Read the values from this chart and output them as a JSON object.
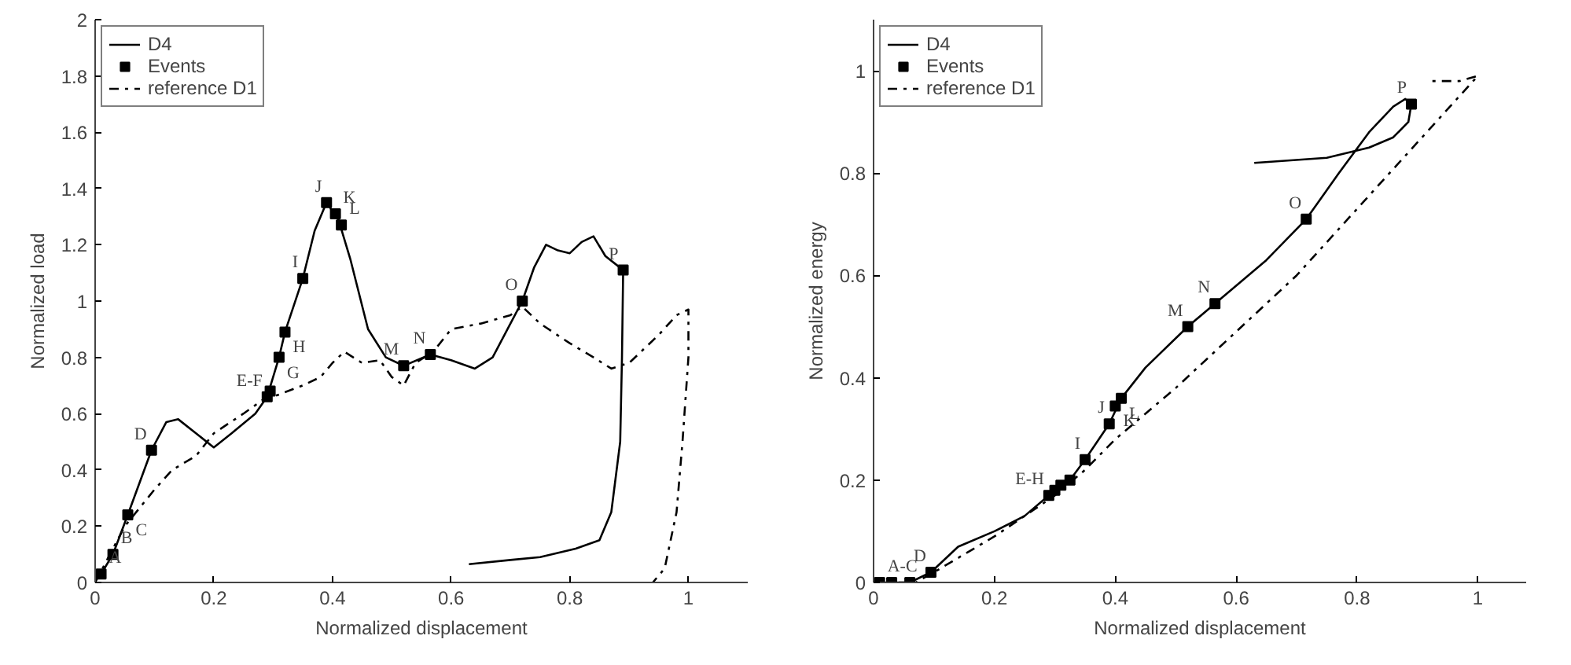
{
  "chart_data": [
    {
      "type": "line",
      "xlabel": "Normalized displacement",
      "ylabel": "Normalized load",
      "xlim": [
        0,
        1.1
      ],
      "ylim": [
        0,
        2
      ],
      "xticks": [
        0,
        0.2,
        0.4,
        0.6,
        0.8,
        1
      ],
      "yticks": [
        0,
        0.2,
        0.4,
        0.6,
        0.8,
        1,
        1.2,
        1.4,
        1.6,
        1.8,
        2
      ],
      "grid": false,
      "legend": "top left",
      "series": [
        {
          "name": "D4",
          "type": "line",
          "color": "#000000",
          "line_style": "solid",
          "x": [
            0,
            0.01,
            0.03,
            0.055,
            0.095,
            0.12,
            0.14,
            0.17,
            0.2,
            0.23,
            0.27,
            0.29,
            0.31,
            0.32,
            0.35,
            0.37,
            0.39,
            0.41,
            0.43,
            0.46,
            0.49,
            0.52,
            0.565,
            0.6,
            0.64,
            0.67,
            0.7,
            0.72,
            0.74,
            0.76,
            0.78,
            0.8,
            0.82,
            0.84,
            0.86,
            0.89,
            0.888,
            0.885,
            0.87,
            0.85,
            0.81,
            0.75,
            0.7,
            0.63
          ],
          "values": [
            0.02,
            0.03,
            0.1,
            0.24,
            0.47,
            0.57,
            0.58,
            0.53,
            0.48,
            0.53,
            0.6,
            0.66,
            0.8,
            0.89,
            1.08,
            1.25,
            1.35,
            1.29,
            1.15,
            0.9,
            0.8,
            0.77,
            0.81,
            0.79,
            0.76,
            0.8,
            0.92,
            1.0,
            1.12,
            1.2,
            1.18,
            1.17,
            1.21,
            1.23,
            1.16,
            1.11,
            0.8,
            0.5,
            0.25,
            0.15,
            0.12,
            0.09,
            0.08,
            0.065
          ]
        },
        {
          "name": "Events",
          "type": "scatter",
          "color": "#000000",
          "marker": "square",
          "x": [
            0.01,
            0.03,
            0.055,
            0.095,
            0.29,
            0.295,
            0.31,
            0.32,
            0.35,
            0.39,
            0.405,
            0.415,
            0.52,
            0.565,
            0.72,
            0.89
          ],
          "values": [
            0.03,
            0.1,
            0.24,
            0.47,
            0.66,
            0.68,
            0.8,
            0.89,
            1.08,
            1.35,
            1.31,
            1.27,
            0.77,
            0.81,
            1.0,
            1.11
          ]
        },
        {
          "name": "reference D1",
          "type": "line",
          "color": "#000000",
          "line_style": "dashdot",
          "x": [
            0,
            0.05,
            0.1,
            0.13,
            0.17,
            0.2,
            0.25,
            0.29,
            0.3,
            0.35,
            0.38,
            0.4,
            0.42,
            0.45,
            0.48,
            0.5,
            0.52,
            0.54,
            0.57,
            0.6,
            0.65,
            0.7,
            0.72,
            0.75,
            0.8,
            0.84,
            0.87,
            0.9,
            0.95,
            0.98,
            1.0,
            1.0,
            0.99,
            0.98,
            0.96,
            0.94
          ],
          "values": [
            0,
            0.2,
            0.33,
            0.4,
            0.45,
            0.53,
            0.6,
            0.66,
            0.66,
            0.7,
            0.73,
            0.78,
            0.82,
            0.78,
            0.79,
            0.73,
            0.7,
            0.78,
            0.82,
            0.9,
            0.92,
            0.95,
            0.98,
            0.92,
            0.85,
            0.8,
            0.76,
            0.78,
            0.88,
            0.95,
            0.97,
            0.8,
            0.5,
            0.25,
            0.05,
            0
          ]
        }
      ],
      "annotations": [
        {
          "text": "A",
          "x": 0.01,
          "y": 0.03
        },
        {
          "text": "B",
          "x": 0.03,
          "y": 0.1
        },
        {
          "text": "C",
          "x": 0.055,
          "y": 0.24
        },
        {
          "text": "D",
          "x": 0.095,
          "y": 0.47
        },
        {
          "text": "E-F",
          "x": 0.29,
          "y": 0.66
        },
        {
          "text": "G",
          "x": 0.31,
          "y": 0.8
        },
        {
          "text": "H",
          "x": 0.32,
          "y": 0.89
        },
        {
          "text": "I",
          "x": 0.35,
          "y": 1.08
        },
        {
          "text": "J",
          "x": 0.39,
          "y": 1.35
        },
        {
          "text": "K",
          "x": 0.405,
          "y": 1.31
        },
        {
          "text": "L",
          "x": 0.415,
          "y": 1.27
        },
        {
          "text": "M",
          "x": 0.52,
          "y": 0.77
        },
        {
          "text": "N",
          "x": 0.565,
          "y": 0.81
        },
        {
          "text": "O",
          "x": 0.72,
          "y": 1.0
        },
        {
          "text": "P",
          "x": 0.89,
          "y": 1.11
        }
      ]
    },
    {
      "type": "line",
      "xlabel": "Normalized displacement",
      "ylabel": "Normalized energy",
      "xlim": [
        0,
        1.08
      ],
      "ylim": [
        0,
        1.1
      ],
      "xticks": [
        0,
        0.2,
        0.4,
        0.6,
        0.8,
        1
      ],
      "yticks": [
        0,
        0.2,
        0.4,
        0.6,
        0.8,
        1
      ],
      "grid": false,
      "legend": "top left",
      "series": [
        {
          "name": "D4",
          "type": "line",
          "color": "#000000",
          "line_style": "solid",
          "x": [
            0,
            0.06,
            0.095,
            0.14,
            0.2,
            0.25,
            0.29,
            0.325,
            0.35,
            0.39,
            0.41,
            0.45,
            0.52,
            0.565,
            0.65,
            0.716,
            0.77,
            0.82,
            0.86,
            0.88,
            0.89,
            0.885,
            0.86,
            0.82,
            0.75,
            0.63
          ],
          "values": [
            0,
            0,
            0.02,
            0.07,
            0.1,
            0.13,
            0.17,
            0.2,
            0.24,
            0.31,
            0.36,
            0.42,
            0.5,
            0.545,
            0.63,
            0.71,
            0.8,
            0.88,
            0.93,
            0.945,
            0.935,
            0.9,
            0.87,
            0.85,
            0.83,
            0.82
          ]
        },
        {
          "name": "Events",
          "type": "scatter",
          "color": "#000000",
          "marker": "square",
          "x": [
            0.01,
            0.03,
            0.06,
            0.095,
            0.29,
            0.3,
            0.31,
            0.325,
            0.35,
            0.39,
            0.4,
            0.41,
            0.52,
            0.565,
            0.716,
            0.89
          ],
          "values": [
            0,
            0,
            0,
            0.02,
            0.17,
            0.18,
            0.19,
            0.2,
            0.24,
            0.31,
            0.345,
            0.36,
            0.5,
            0.545,
            0.71,
            0.935
          ]
        },
        {
          "name": "reference D1",
          "type": "line",
          "color": "#000000",
          "line_style": "dashdot",
          "x": [
            0,
            0.07,
            0.1,
            0.2,
            0.3,
            0.35,
            0.4,
            0.5,
            0.6,
            0.7,
            0.8,
            0.9,
            1.0,
            0.97,
            0.92
          ],
          "values": [
            0,
            0,
            0.02,
            0.09,
            0.17,
            0.22,
            0.28,
            0.38,
            0.49,
            0.6,
            0.73,
            0.86,
            0.99,
            0.98,
            0.98
          ]
        }
      ],
      "annotations": [
        {
          "text": "A-C",
          "x": 0.01,
          "y": 0
        },
        {
          "text": "D",
          "x": 0.095,
          "y": 0.02
        },
        {
          "text": "E-H",
          "x": 0.29,
          "y": 0.17
        },
        {
          "text": "I",
          "x": 0.35,
          "y": 0.24
        },
        {
          "text": "J",
          "x": 0.39,
          "y": 0.31
        },
        {
          "text": "K",
          "x": 0.4,
          "y": 0.345
        },
        {
          "text": "L",
          "x": 0.41,
          "y": 0.36
        },
        {
          "text": "M",
          "x": 0.52,
          "y": 0.5
        },
        {
          "text": "N",
          "x": 0.565,
          "y": 0.545
        },
        {
          "text": "O",
          "x": 0.716,
          "y": 0.71
        },
        {
          "text": "P",
          "x": 0.89,
          "y": 0.935
        }
      ]
    }
  ]
}
